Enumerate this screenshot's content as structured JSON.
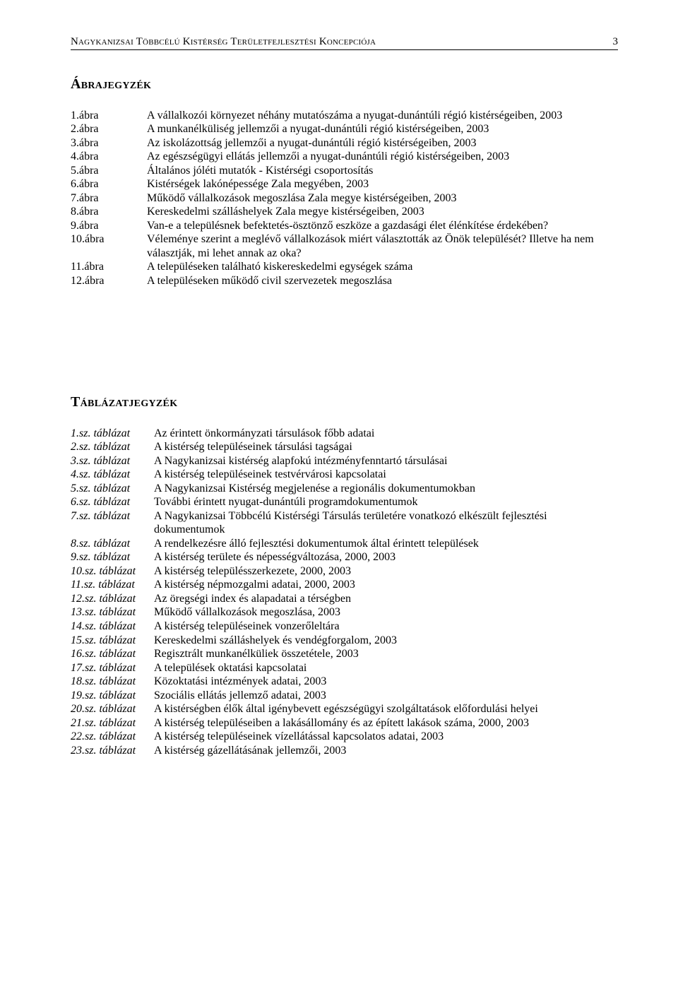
{
  "header": {
    "title": "Nagykanizsai Többcélú Kistérség Területfejlesztési Koncepciója",
    "page": "3"
  },
  "sections": {
    "figures": {
      "heading": "Ábrajegyzék",
      "items": [
        {
          "label": "1.ábra",
          "text": "A vállalkozói környezet néhány mutatószáma a nyugat-dunántúli régió kistérségeiben, 2003"
        },
        {
          "label": "2.ábra",
          "text": "A munkanélküliség jellemzői a nyugat-dunántúli régió kistérségeiben, 2003"
        },
        {
          "label": "3.ábra",
          "text": "Az iskolázottság jellemzői a nyugat-dunántúli régió kistérségeiben, 2003"
        },
        {
          "label": "4.ábra",
          "text": "Az egészségügyi ellátás jellemzői a nyugat-dunántúli régió kistérségeiben, 2003"
        },
        {
          "label": "5.ábra",
          "text": "Általános jóléti mutatók - Kistérségi csoportosítás"
        },
        {
          "label": "6.ábra",
          "text": "Kistérségek lakónépessége Zala megyében, 2003"
        },
        {
          "label": "7.ábra",
          "text": "Működő vállalkozások megoszlása Zala megye kistérségeiben, 2003"
        },
        {
          "label": "8.ábra",
          "text": "Kereskedelmi szálláshelyek Zala megye kistérségeiben, 2003"
        },
        {
          "label": "9.ábra",
          "text": "Van-e a településnek befektetés-ösztönző eszköze a gazdasági élet élénkítése érdekében?"
        },
        {
          "label": "10.ábra",
          "text": "Véleménye szerint a meglévő vállalkozások miért választották az Önök települését? Illetve ha nem választják, mi lehet annak az oka?"
        },
        {
          "label": "11.ábra",
          "text": "A településeken található kiskereskedelmi egységek száma"
        },
        {
          "label": "12.ábra",
          "text": "A településeken működő civil szervezetek megoszlása"
        }
      ]
    },
    "tables": {
      "heading": "Táblázatjegyzék",
      "items": [
        {
          "label": "1.sz. táblázat",
          "text": "Az érintett önkormányzati társulások főbb adatai"
        },
        {
          "label": "2.sz. táblázat",
          "text": "A kistérség településeinek társulási tagságai"
        },
        {
          "label": "3.sz. táblázat",
          "text": "A Nagykanizsai kistérség alapfokú intézményfenntartó társulásai"
        },
        {
          "label": "4.sz. táblázat",
          "text": "A kistérség településeinek testvérvárosi kapcsolatai"
        },
        {
          "label": "5.sz. táblázat",
          "text": "A Nagykanizsai Kistérség megjelenése a regionális dokumentumokban"
        },
        {
          "label": "6.sz. táblázat",
          "text": "További érintett nyugat-dunántúli programdokumentumok"
        },
        {
          "label": "7.sz. táblázat",
          "text": "A Nagykanizsai Többcélú Kistérségi Társulás területére vonatkozó elkészült fejlesztési dokumentumok"
        },
        {
          "label": "8.sz. táblázat",
          "text": "A rendelkezésre álló fejlesztési dokumentumok által érintett települések"
        },
        {
          "label": "9.sz. táblázat",
          "text": "A kistérség területe és népességváltozása, 2000, 2003"
        },
        {
          "label": "10.sz. táblázat",
          "text": "A kistérség településszerkezete, 2000, 2003"
        },
        {
          "label": "11.sz. táblázat",
          "text": "A kistérség népmozgalmi adatai, 2000, 2003"
        },
        {
          "label": "12.sz. táblázat",
          "text": "Az öregségi index és alapadatai a térségben"
        },
        {
          "label": "13.sz. táblázat",
          "text": "Működő vállalkozások megoszlása, 2003"
        },
        {
          "label": "14.sz. táblázat",
          "text": "A kistérség településeinek vonzerőleltára"
        },
        {
          "label": "15.sz. táblázat",
          "text": "Kereskedelmi szálláshelyek és vendégforgalom, 2003"
        },
        {
          "label": "16.sz. táblázat",
          "text": "Regisztrált munkanélküliek összetétele, 2003"
        },
        {
          "label": "17.sz. táblázat",
          "text": "A települések oktatási kapcsolatai"
        },
        {
          "label": "18.sz. táblázat",
          "text": "Közoktatási intézmények adatai, 2003"
        },
        {
          "label": "19.sz. táblázat",
          "text": "Szociális ellátás jellemző adatai, 2003"
        },
        {
          "label": "20.sz. táblázat",
          "text": "A kistérségben élők által igénybevett egészségügyi szolgáltatások előfordulási helyei"
        },
        {
          "label": "21.sz. táblázat",
          "text": "A kistérség településeiben a lakásállomány és az épített lakások száma, 2000, 2003"
        },
        {
          "label": "22.sz. táblázat",
          "text": "A kistérség településeinek vízellátással kapcsolatos adatai, 2003"
        },
        {
          "label": "23.sz. táblázat",
          "text": "A kistérség gázellátásának jellemzői, 2003"
        }
      ]
    }
  }
}
